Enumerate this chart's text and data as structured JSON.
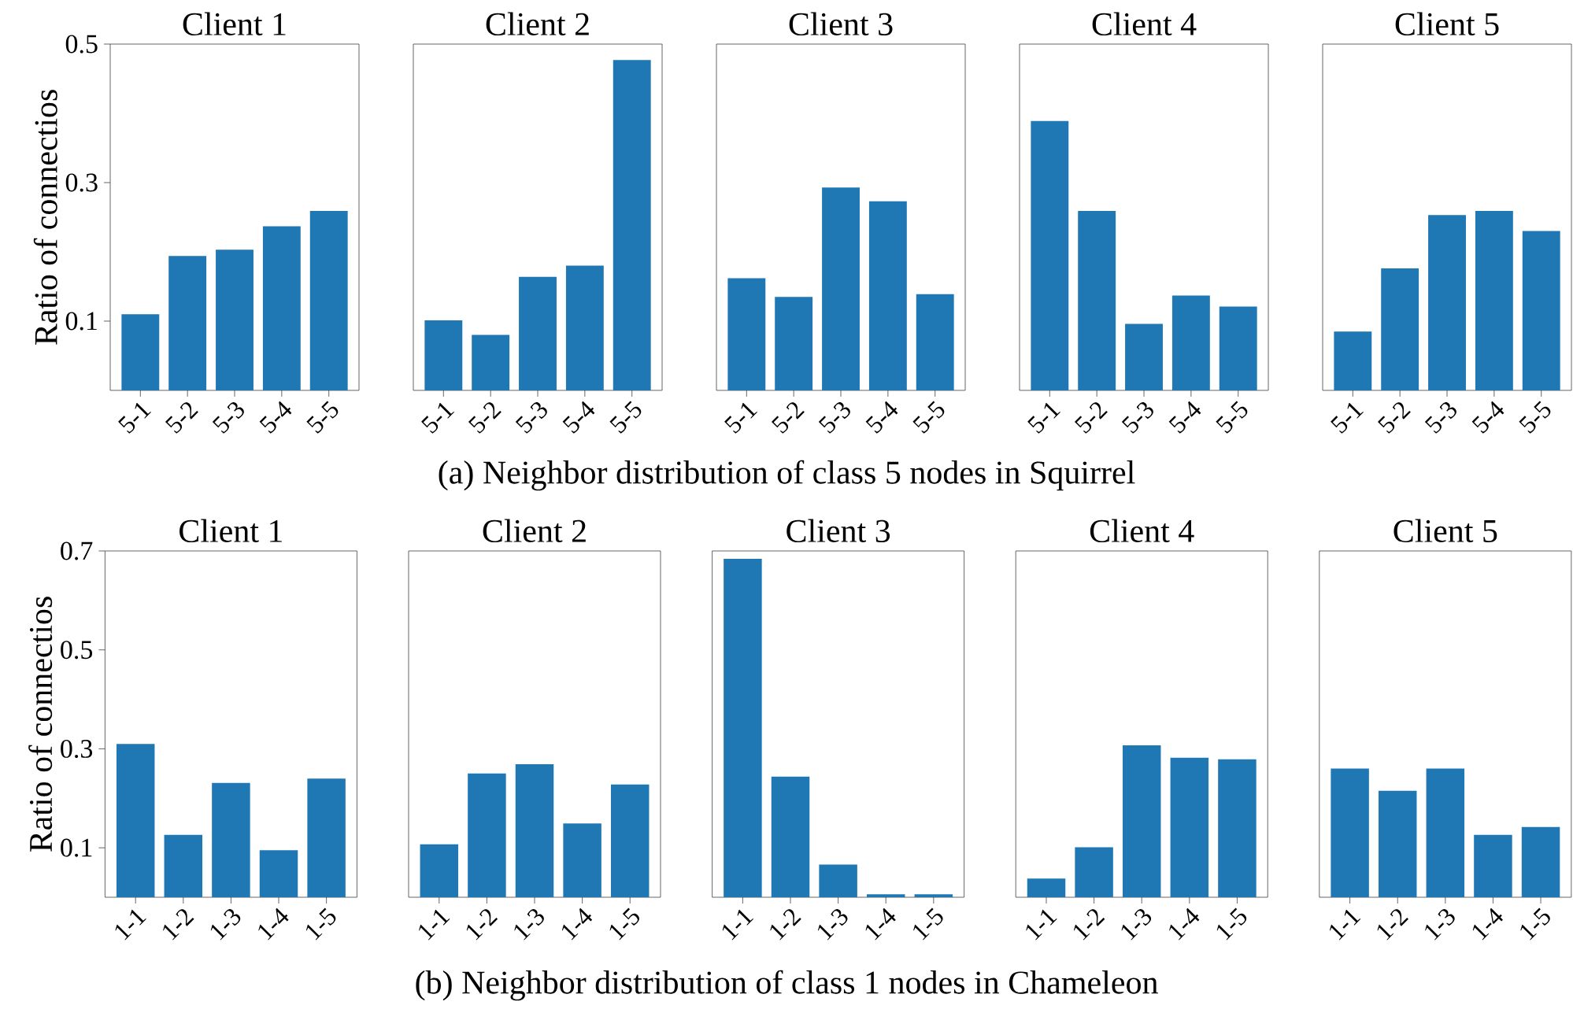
{
  "chart_data": [
    {
      "type": "bar",
      "title": "Client 1",
      "ylabel": "Ratio of connectios",
      "categories": [
        "5-1",
        "5-2",
        "5-3",
        "5-4",
        "5-5"
      ],
      "values": [
        0.11,
        0.194,
        0.203,
        0.237,
        0.259
      ],
      "color": "#1f77b4",
      "ylim": [
        0,
        0.5
      ],
      "yticks": [
        0.1,
        0.3,
        0.5
      ]
    },
    {
      "type": "bar",
      "title": "Client 2",
      "categories": [
        "5-1",
        "5-2",
        "5-3",
        "5-4",
        "5-5"
      ],
      "values": [
        0.101,
        0.08,
        0.164,
        0.18,
        0.477
      ],
      "color": "#1f77b4",
      "ylim": [
        0,
        0.5
      ],
      "tick_labels": "x"
    },
    {
      "type": "bar",
      "title": "Client 3",
      "categories": [
        "5-1",
        "5-2",
        "5-3",
        "5-4",
        "5-5"
      ],
      "values": [
        0.162,
        0.135,
        0.293,
        0.273,
        0.139
      ],
      "color": "#1f77b4",
      "ylim": [
        0,
        0.5
      ],
      "tick_labels": "x",
      "annotations": [
        "(a) Neighbor distribution of class 5 nodes in Squirrel"
      ]
    },
    {
      "type": "bar",
      "title": "Client 4",
      "categories": [
        "5-1",
        "5-2",
        "5-3",
        "5-4",
        "5-5"
      ],
      "values": [
        0.389,
        0.259,
        0.096,
        0.137,
        0.121
      ],
      "color": "#1f77b4",
      "ylim": [
        0,
        0.5
      ],
      "tick_labels": "x"
    },
    {
      "type": "bar",
      "title": "Client 5",
      "categories": [
        "5-1",
        "5-2",
        "5-3",
        "5-4",
        "5-5"
      ],
      "values": [
        0.085,
        0.176,
        0.253,
        0.259,
        0.23
      ],
      "color": "#1f77b4",
      "ylim": [
        0,
        0.5
      ],
      "tick_labels": "x"
    },
    {
      "type": "bar",
      "title": "Client 1",
      "ylabel": "Ratio of connectios",
      "categories": [
        "1-1",
        "1-2",
        "1-3",
        "1-4",
        "1-5"
      ],
      "values": [
        0.31,
        0.126,
        0.231,
        0.095,
        0.24
      ],
      "color": "#1f77b4",
      "ylim": [
        0,
        0.7
      ],
      "yticks": [
        0.1,
        0.3,
        0.5,
        0.7
      ]
    },
    {
      "type": "bar",
      "title": "Client 2",
      "categories": [
        "1-1",
        "1-2",
        "1-3",
        "1-4",
        "1-5"
      ],
      "values": [
        0.107,
        0.25,
        0.269,
        0.149,
        0.228
      ],
      "color": "#1f77b4",
      "ylim": [
        0,
        0.7
      ],
      "tick_labels": "x"
    },
    {
      "type": "bar",
      "title": "Client 3",
      "categories": [
        "1-1",
        "1-2",
        "1-3",
        "1-4",
        "1-5"
      ],
      "values": [
        0.684,
        0.244,
        0.066,
        0.006,
        0.006
      ],
      "color": "#1f77b4",
      "ylim": [
        0,
        0.7
      ],
      "tick_labels": "x",
      "annotations": [
        "(b) Neighbor distribution of class 1 nodes in Chameleon"
      ]
    },
    {
      "type": "bar",
      "title": "Client 4",
      "categories": [
        "1-1",
        "1-2",
        "1-3",
        "1-4",
        "1-5"
      ],
      "values": [
        0.038,
        0.101,
        0.307,
        0.282,
        0.279
      ],
      "color": "#1f77b4",
      "ylim": [
        0,
        0.7
      ],
      "tick_labels": "x"
    },
    {
      "type": "bar",
      "title": "Client 5",
      "categories": [
        "1-1",
        "1-2",
        "1-3",
        "1-4",
        "1-5"
      ],
      "values": [
        0.26,
        0.215,
        0.26,
        0.126,
        0.142
      ],
      "color": "#1f77b4",
      "ylim": [
        0,
        0.7
      ],
      "tick_labels": "x"
    }
  ]
}
